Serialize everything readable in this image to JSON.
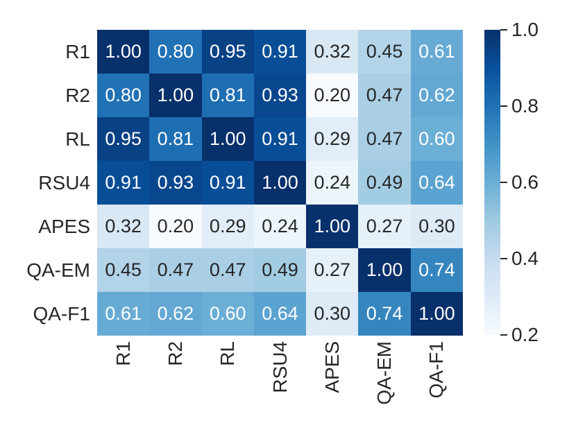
{
  "chart_data": {
    "type": "heatmap",
    "title": "",
    "xlabel": "",
    "ylabel": "",
    "categories": [
      "R1",
      "R2",
      "RL",
      "RSU4",
      "APES",
      "QA-EM",
      "QA-F1"
    ],
    "matrix": [
      [
        1.0,
        0.8,
        0.95,
        0.91,
        0.32,
        0.45,
        0.61
      ],
      [
        0.8,
        1.0,
        0.81,
        0.93,
        0.2,
        0.47,
        0.62
      ],
      [
        0.95,
        0.81,
        1.0,
        0.91,
        0.29,
        0.47,
        0.6
      ],
      [
        0.91,
        0.93,
        0.91,
        1.0,
        0.24,
        0.49,
        0.64
      ],
      [
        0.32,
        0.2,
        0.29,
        0.24,
        1.0,
        0.27,
        0.3
      ],
      [
        0.45,
        0.47,
        0.47,
        0.49,
        0.27,
        1.0,
        0.74
      ],
      [
        0.61,
        0.62,
        0.6,
        0.64,
        0.3,
        0.74,
        1.0
      ]
    ],
    "value_format_decimals": 2,
    "colormap": "Blues",
    "colormap_hex": [
      "#f7fbff",
      "#deebf7",
      "#c6dbef",
      "#9ecae1",
      "#6baed6",
      "#4292c6",
      "#2171b5",
      "#08519c",
      "#08306b"
    ],
    "vmin": 0.2,
    "vmax": 1.0,
    "grid": false,
    "legend_position": "none",
    "colorbar": {
      "position": "right",
      "tick_values": [
        1.0,
        0.8,
        0.6,
        0.4,
        0.2
      ],
      "tick_labels": [
        "1.0",
        "0.8",
        "0.6",
        "0.4",
        "0.2"
      ]
    },
    "annotation_text_color_dark": "#262626",
    "annotation_text_color_light": "#ffffff"
  }
}
